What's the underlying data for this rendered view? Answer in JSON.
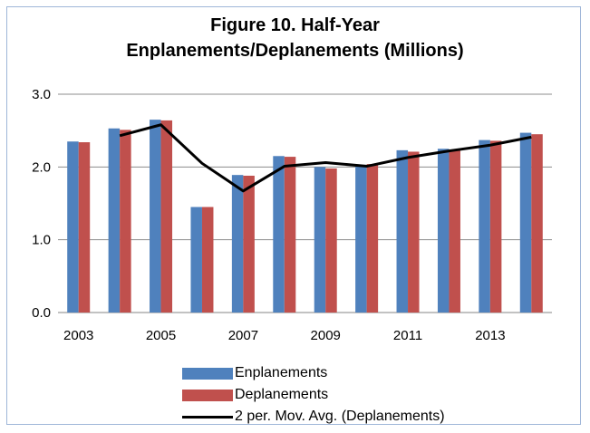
{
  "chart_data": {
    "type": "bar",
    "title_lines": [
      "Figure 10. Half-Year",
      "Enplanements/Deplanements (Millions)"
    ],
    "categories": [
      "2003",
      "2004",
      "2005",
      "2006",
      "2007",
      "2008",
      "2009",
      "2010",
      "2011",
      "2012",
      "2013",
      "2014"
    ],
    "x_tick_labels": [
      "2003",
      "",
      "2005",
      "",
      "2007",
      "",
      "2009",
      "",
      "2011",
      "",
      "2013",
      ""
    ],
    "series": [
      {
        "name": "Enplanements",
        "type": "bar",
        "color": "#4f81bd",
        "values": [
          2.35,
          2.53,
          2.65,
          1.45,
          1.89,
          2.15,
          2.0,
          2.03,
          2.23,
          2.25,
          2.37,
          2.47
        ]
      },
      {
        "name": "Deplanements",
        "type": "bar",
        "color": "#c0504d",
        "values": [
          2.34,
          2.51,
          2.64,
          1.45,
          1.88,
          2.14,
          1.98,
          2.04,
          2.21,
          2.23,
          2.36,
          2.45
        ]
      },
      {
        "name": "2 per. Mov. Avg. (Deplanements)",
        "type": "line",
        "color": "#000000",
        "values": [
          null,
          2.43,
          2.58,
          2.05,
          1.67,
          2.01,
          2.06,
          2.01,
          2.13,
          2.22,
          2.3,
          2.41
        ]
      }
    ],
    "y_ticks": [
      "0.0",
      "1.0",
      "2.0",
      "3.0"
    ],
    "ylim": [
      0,
      3
    ],
    "grid": true,
    "legend_position": "bottom"
  }
}
